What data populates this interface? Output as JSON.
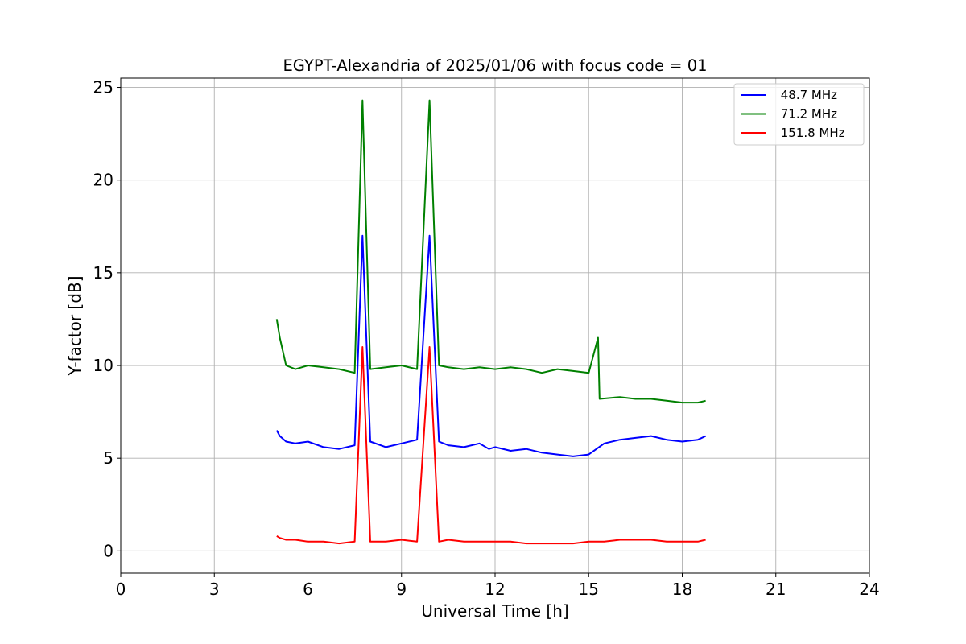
{
  "chart_data": {
    "type": "line",
    "title": "EGYPT-Alexandria of 2025/01/06 with focus code = 01",
    "xlabel": "Universal Time [h]",
    "ylabel": "Y-factor [dB]",
    "xlim": [
      0,
      24
    ],
    "ylim": [
      -1.2,
      25.5
    ],
    "xticks": [
      0,
      3,
      6,
      9,
      12,
      15,
      18,
      21,
      24
    ],
    "xtick_labels": [
      "0",
      "3",
      "6",
      "9",
      "12",
      "15",
      "18",
      "21",
      "24"
    ],
    "yticks": [
      0,
      5,
      10,
      15,
      20,
      25
    ],
    "ytick_labels": [
      "0",
      "5",
      "10",
      "15",
      "20",
      "25"
    ],
    "grid": true,
    "legend_position": "top-right",
    "series": [
      {
        "name": " 48.7 MHz",
        "color": "#0000ff",
        "x": [
          5.0,
          5.1,
          5.3,
          5.6,
          6.0,
          6.5,
          7.0,
          7.5,
          7.75,
          8.0,
          8.5,
          9.0,
          9.5,
          9.9,
          10.2,
          10.5,
          11.0,
          11.5,
          11.8,
          12.0,
          12.5,
          13.0,
          13.5,
          14.0,
          14.5,
          15.0,
          15.5,
          16.0,
          16.5,
          17.0,
          17.5,
          18.0,
          18.5,
          18.75
        ],
        "y": [
          6.5,
          6.2,
          5.9,
          5.8,
          5.9,
          5.6,
          5.5,
          5.7,
          17.0,
          5.9,
          5.6,
          5.8,
          6.0,
          17.0,
          5.9,
          5.7,
          5.6,
          5.8,
          5.5,
          5.6,
          5.4,
          5.5,
          5.3,
          5.2,
          5.1,
          5.2,
          5.8,
          6.0,
          6.1,
          6.2,
          6.0,
          5.9,
          6.0,
          6.2
        ]
      },
      {
        "name": " 71.2 MHz",
        "color": "#008000",
        "x": [
          5.0,
          5.1,
          5.3,
          5.6,
          6.0,
          6.5,
          7.0,
          7.5,
          7.75,
          8.0,
          8.5,
          9.0,
          9.5,
          9.9,
          10.2,
          10.5,
          11.0,
          11.5,
          12.0,
          12.5,
          13.0,
          13.5,
          14.0,
          14.5,
          15.0,
          15.3,
          15.35,
          16.0,
          16.5,
          17.0,
          17.5,
          18.0,
          18.5,
          18.75
        ],
        "y": [
          12.5,
          11.5,
          10.0,
          9.8,
          10.0,
          9.9,
          9.8,
          9.6,
          24.3,
          9.8,
          9.9,
          10.0,
          9.8,
          24.3,
          10.0,
          9.9,
          9.8,
          9.9,
          9.8,
          9.9,
          9.8,
          9.6,
          9.8,
          9.7,
          9.6,
          11.5,
          8.2,
          8.3,
          8.2,
          8.2,
          8.1,
          8.0,
          8.0,
          8.1
        ]
      },
      {
        "name": " 151.8 MHz",
        "color": "#ff0000",
        "x": [
          5.0,
          5.1,
          5.3,
          5.6,
          6.0,
          6.5,
          7.0,
          7.5,
          7.75,
          8.0,
          8.5,
          9.0,
          9.5,
          9.9,
          10.2,
          10.5,
          11.0,
          11.5,
          12.0,
          12.5,
          13.0,
          13.5,
          14.0,
          14.5,
          15.0,
          15.5,
          16.0,
          16.5,
          17.0,
          17.5,
          18.0,
          18.5,
          18.75
        ],
        "y": [
          0.8,
          0.7,
          0.6,
          0.6,
          0.5,
          0.5,
          0.4,
          0.5,
          11.0,
          0.5,
          0.5,
          0.6,
          0.5,
          11.0,
          0.5,
          0.6,
          0.5,
          0.5,
          0.5,
          0.5,
          0.4,
          0.4,
          0.4,
          0.4,
          0.5,
          0.5,
          0.6,
          0.6,
          0.6,
          0.5,
          0.5,
          0.5,
          0.6
        ]
      }
    ]
  }
}
